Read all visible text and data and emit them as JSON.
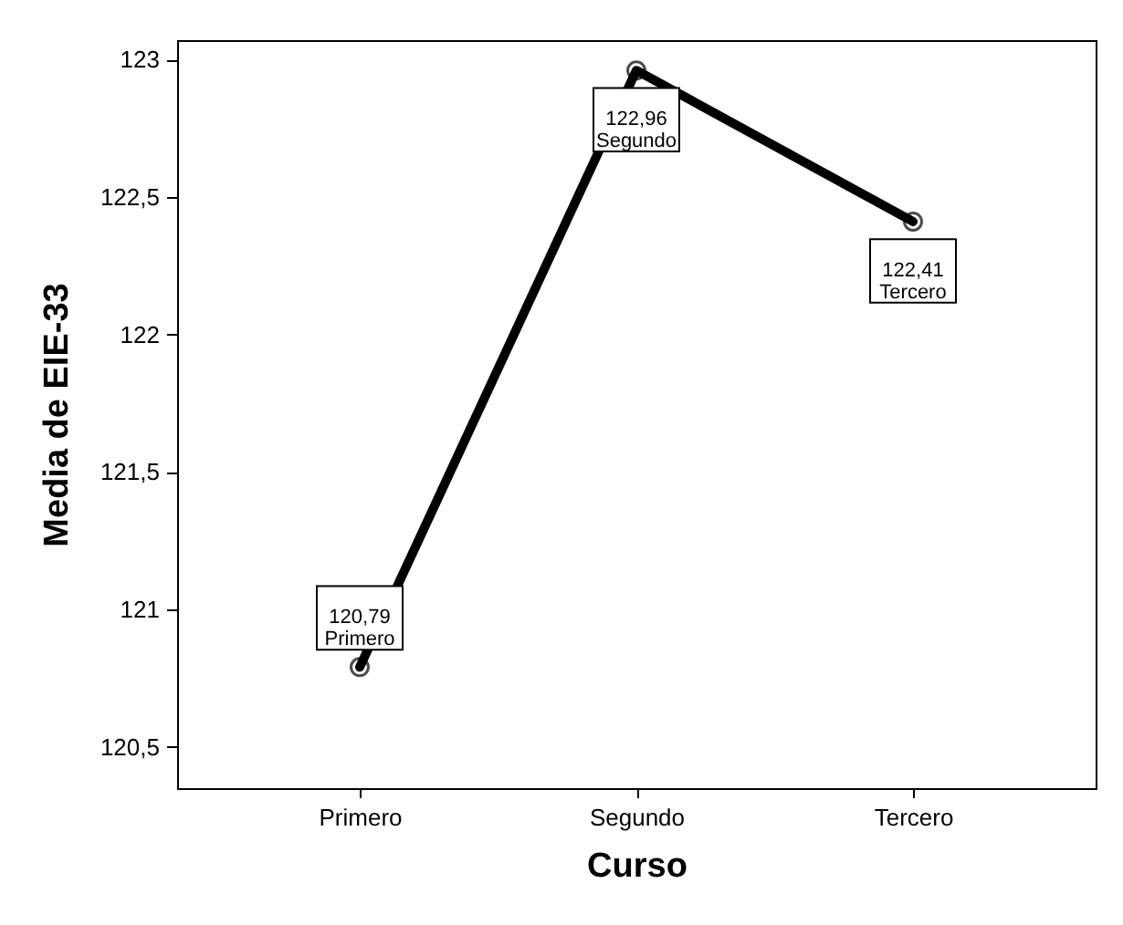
{
  "chart_data": {
    "type": "line",
    "xlabel": "Curso",
    "ylabel": "Media de EIE-33",
    "categories": [
      "Primero",
      "Segundo",
      "Tercero"
    ],
    "series": [
      {
        "color": "#000000",
        "values": [
          120.79,
          122.96,
          122.41
        ],
        "value_labels": [
          "120,79",
          "122,96",
          "122,41"
        ]
      }
    ],
    "ylim": [
      120.35,
      123.07
    ],
    "yticks": [
      {
        "value": 120.5,
        "label": "120,5"
      },
      121,
      {
        "value": 121.5,
        "label": "121,5"
      },
      122,
      {
        "value": 122.5,
        "label": "122,5"
      },
      123
    ],
    "marker": "circle",
    "line_style": "solid",
    "grid": false
  }
}
